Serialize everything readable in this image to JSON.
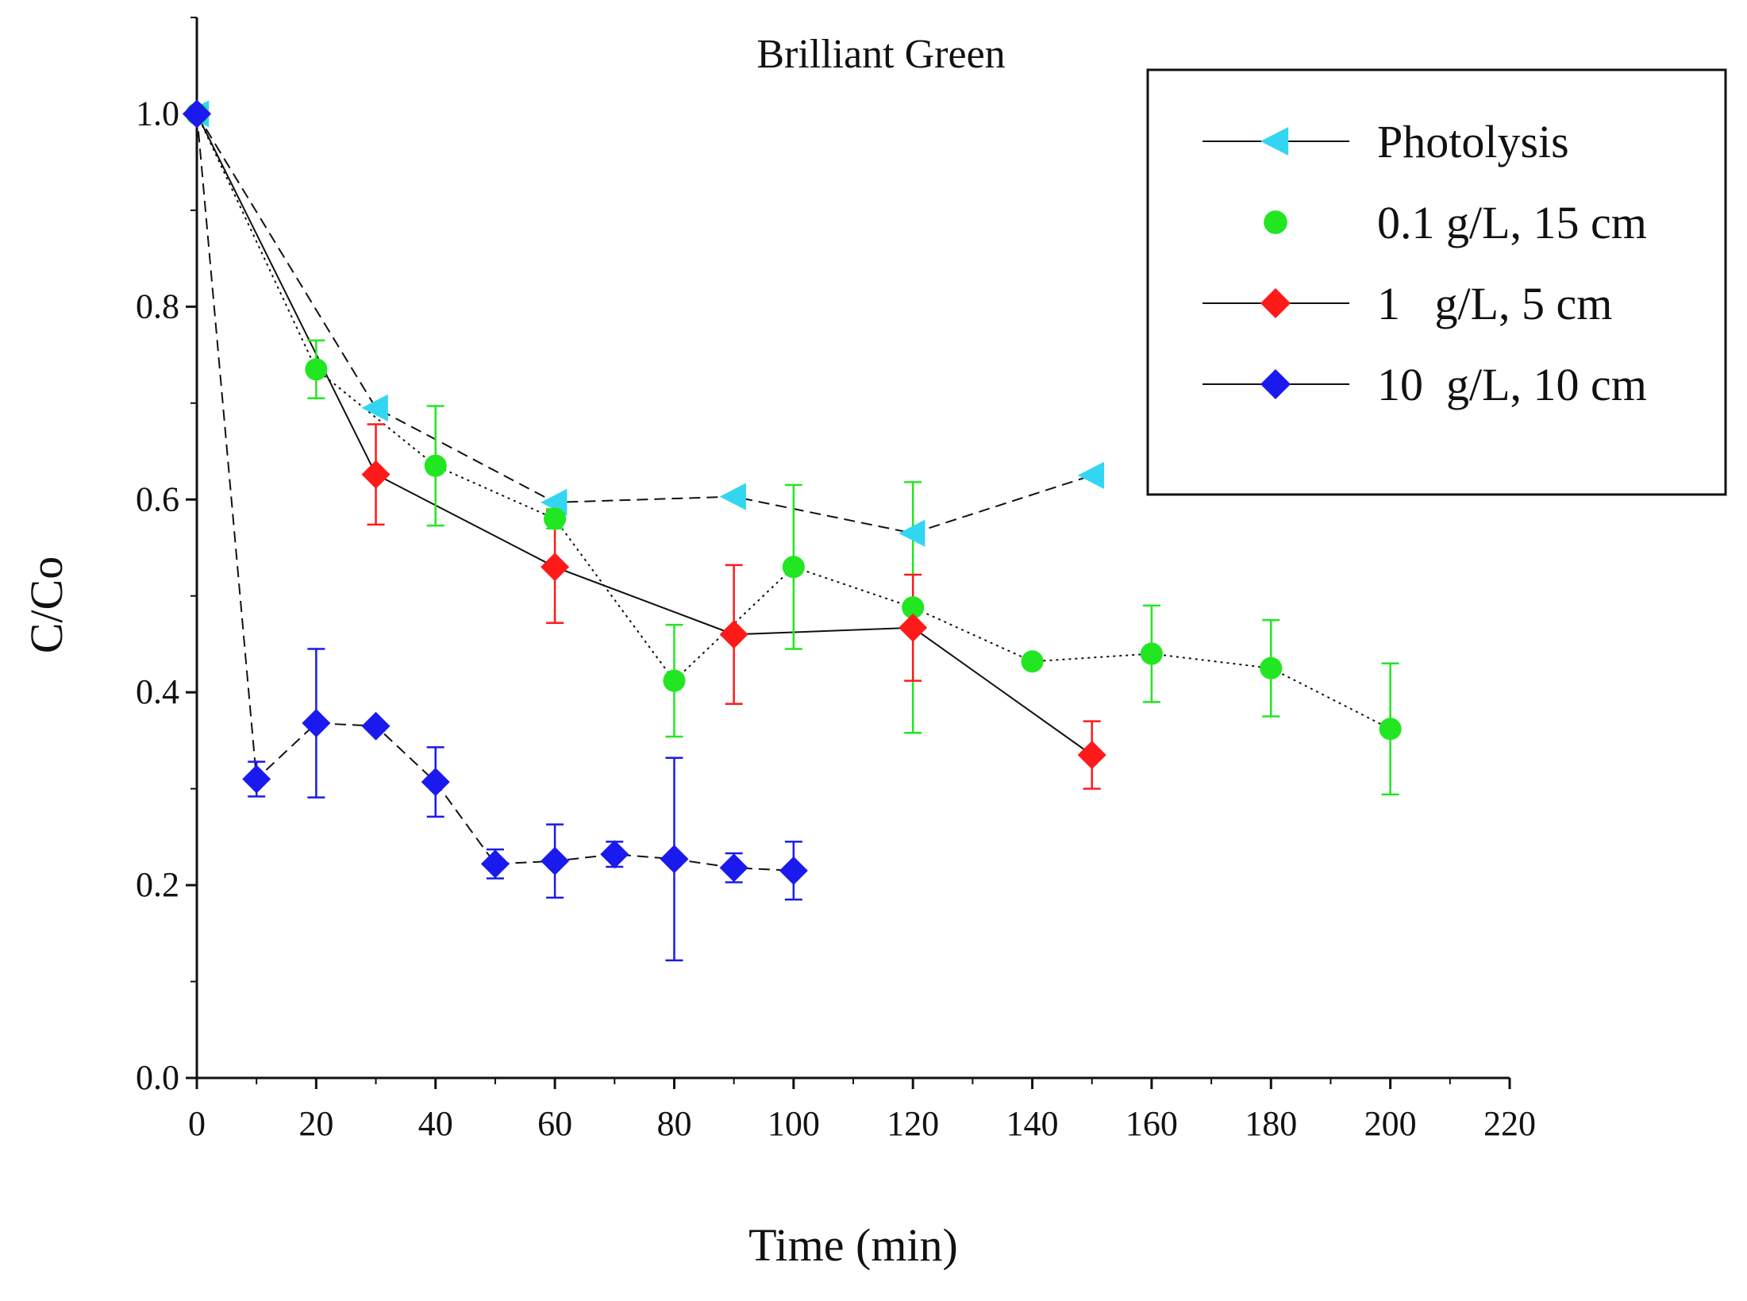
{
  "chart_data": {
    "type": "scatter",
    "title": "Brilliant Green",
    "xlabel": "Time (min)",
    "ylabel": "C/Co",
    "xlim": [
      0,
      220
    ],
    "ylim": [
      0.0,
      1.1
    ],
    "xticks": [
      0,
      20,
      40,
      60,
      80,
      100,
      120,
      140,
      160,
      180,
      200,
      220
    ],
    "xtick_labels": [
      "0",
      "20",
      "40",
      "60",
      "80",
      "100",
      "120",
      "140",
      "160",
      "180",
      "200",
      "220"
    ],
    "yticks": [
      0.0,
      0.2,
      0.4,
      0.6,
      0.8,
      1.0
    ],
    "ytick_labels": [
      "0.0",
      "0.2",
      "0.4",
      "0.6",
      "0.8",
      "1.0"
    ],
    "legend_position": "top-right",
    "series": [
      {
        "name": "Photolysis",
        "legend_label": "Photolysis",
        "color": "#33d6f0",
        "marker": "triangle-left",
        "line": "dashed",
        "x": [
          0,
          30,
          60,
          90,
          120,
          150
        ],
        "y": [
          1.0,
          0.695,
          0.597,
          0.603,
          0.565,
          0.625
        ],
        "err": [
          0,
          0,
          0,
          0,
          0,
          0
        ]
      },
      {
        "name": "0.1 g/L, 15 cm",
        "legend_label": "0.1 g/L, 15 cm",
        "color": "#22e622",
        "marker": "circle",
        "line": "dotted",
        "x": [
          0,
          20,
          40,
          60,
          80,
          100,
          120,
          140,
          160,
          180,
          200
        ],
        "y": [
          1.0,
          0.735,
          0.635,
          0.58,
          0.412,
          0.53,
          0.488,
          0.432,
          0.44,
          0.425,
          0.362
        ],
        "err": [
          0,
          0.03,
          0.062,
          0.01,
          0.058,
          0.085,
          0.13,
          0,
          0.05,
          0.05,
          0.068
        ]
      },
      {
        "name": "1 g/L, 5 cm",
        "legend_label": "1   g/L, 5 cm",
        "color": "#ff1a1a",
        "marker": "diamond",
        "line": "solid",
        "x": [
          0,
          30,
          60,
          90,
          120,
          150
        ],
        "y": [
          1.0,
          0.626,
          0.53,
          0.46,
          0.467,
          0.335
        ],
        "err": [
          0,
          0.052,
          0.058,
          0.072,
          0.055,
          0.035
        ]
      },
      {
        "name": "10 g/L, 10 cm",
        "legend_label": "10  g/L, 10 cm",
        "color": "#1a1aee",
        "marker": "diamond",
        "line": "dashed",
        "x": [
          0,
          10,
          20,
          30,
          40,
          50,
          60,
          70,
          80,
          90,
          100
        ],
        "y": [
          1.0,
          0.31,
          0.368,
          0.365,
          0.307,
          0.222,
          0.225,
          0.232,
          0.227,
          0.218,
          0.215
        ],
        "err": [
          0,
          0.018,
          0.077,
          0,
          0.036,
          0.015,
          0.038,
          0.013,
          0.105,
          0.015,
          0.03
        ]
      }
    ]
  }
}
